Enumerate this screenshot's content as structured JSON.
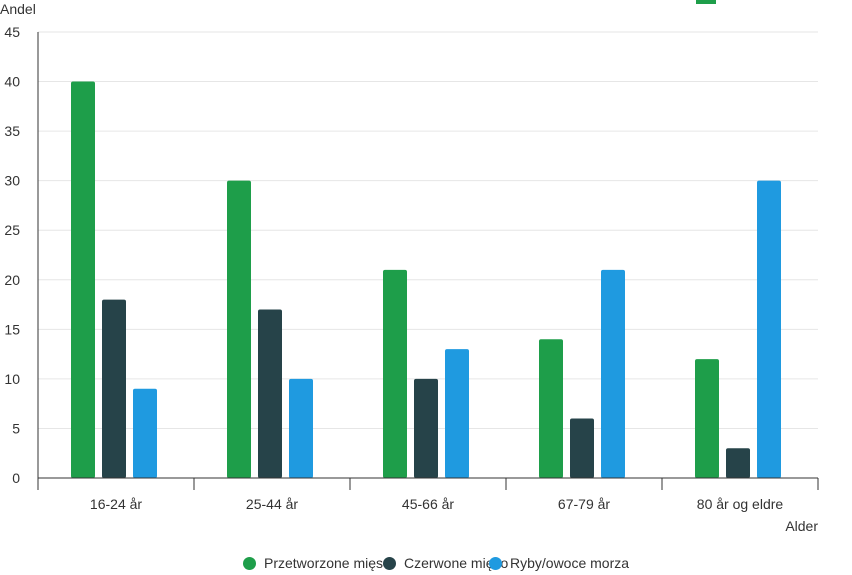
{
  "chart_data": {
    "type": "bar",
    "ylabel": "Andel",
    "xlabel": "Alder",
    "ylim": [
      0,
      45
    ],
    "yticks": [
      0,
      5,
      10,
      15,
      20,
      25,
      30,
      35,
      40,
      45
    ],
    "grid": true,
    "legend_position": "bottom",
    "categories": [
      "16-24 år",
      "25-44 år",
      "45-66 år",
      "67-79 år",
      "80 år og eldre"
    ],
    "series": [
      {
        "name": "Przetworzone mięso",
        "color": "#1e9e4a",
        "values": [
          40,
          30,
          21,
          14,
          12
        ]
      },
      {
        "name": "Czerwone mięso",
        "color": "#264349",
        "values": [
          18,
          17,
          10,
          6,
          3
        ]
      },
      {
        "name": "Ryby/owoce morza",
        "color": "#1f9ae0",
        "values": [
          9,
          10,
          13,
          21,
          30
        ]
      }
    ]
  },
  "legend_icon": "circle",
  "corner_swatch_color": "#1e9e4a"
}
